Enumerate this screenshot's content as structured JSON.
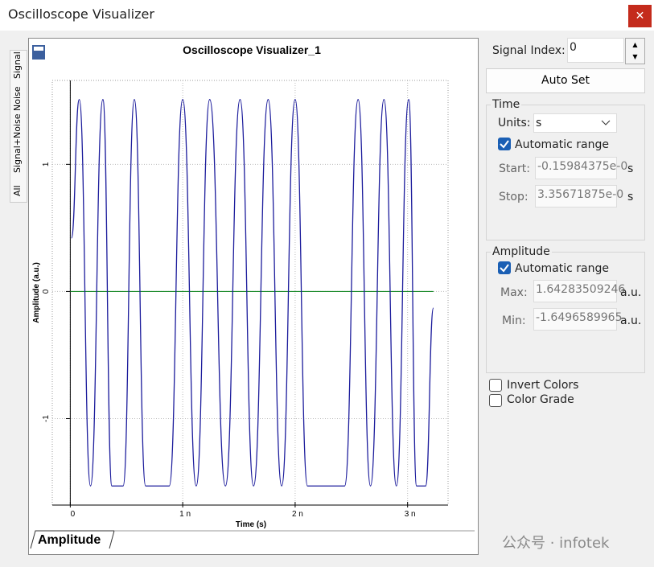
{
  "window": {
    "title": "Oscilloscope Visualizer"
  },
  "side_tabs": [
    "Signal",
    "Noise",
    "Signal+Noise",
    "All"
  ],
  "chart_data": {
    "type": "line",
    "title": "Oscilloscope Visualizer_1",
    "x_label": "Time (s)",
    "y_label": "Amplitude (a.u.)",
    "x": [
      0.01,
      0.08,
      0.18,
      0.29,
      0.37,
      0.47,
      0.57,
      0.67,
      0.88,
      1.0,
      1.12,
      1.24,
      1.38,
      1.51,
      1.63,
      1.76,
      1.88,
      2.0,
      2.11,
      2.44,
      2.56,
      2.67,
      2.79,
      2.9,
      3.01,
      3.08,
      3.16,
      3.23
    ],
    "values": [
      0.42,
      1.51,
      -1.53,
      1.51,
      -1.53,
      -1.53,
      1.51,
      -1.53,
      -1.53,
      1.51,
      -1.53,
      1.51,
      -1.53,
      1.51,
      -1.53,
      1.51,
      -1.53,
      1.51,
      -1.53,
      -1.53,
      1.51,
      -1.53,
      1.51,
      -1.53,
      1.51,
      -1.53,
      -1.53,
      -0.13
    ],
    "color": "#1c1c9c",
    "xlim": [
      -0.16,
      3.36
    ],
    "xticks": [
      0,
      {
        "value": 1,
        "label": "1 n"
      },
      {
        "value": 2,
        "label": "2 n"
      },
      {
        "value": 3,
        "label": "3 n"
      }
    ],
    "ylim": [
      -1.68,
      1.66
    ],
    "yticks": [
      -1,
      0,
      1
    ],
    "grid": true
  },
  "bottom_tab": "Amplitude",
  "controls": {
    "signal_index_label": "Signal Index:",
    "signal_index": "0",
    "auto_set": "Auto Set",
    "time": {
      "group": "Time",
      "units_label": "Units:",
      "units": "s",
      "auto_range": "Automatic range",
      "start_label": "Start:",
      "start": "-0.15984375e-0",
      "start_unit": "s",
      "stop_label": "Stop:",
      "stop": "3.35671875e-0",
      "stop_unit": "s"
    },
    "amplitude": {
      "group": "Amplitude",
      "auto_range": "Automatic range",
      "max_label": "Max:",
      "max": "1.64283509246",
      "max_unit": "a.u.",
      "min_label": "Min:",
      "min": "-1.6496589965",
      "min_unit": "a.u."
    },
    "invert_colors": "Invert Colors",
    "color_grade": "Color Grade"
  },
  "watermark": "公众号 · infotek"
}
